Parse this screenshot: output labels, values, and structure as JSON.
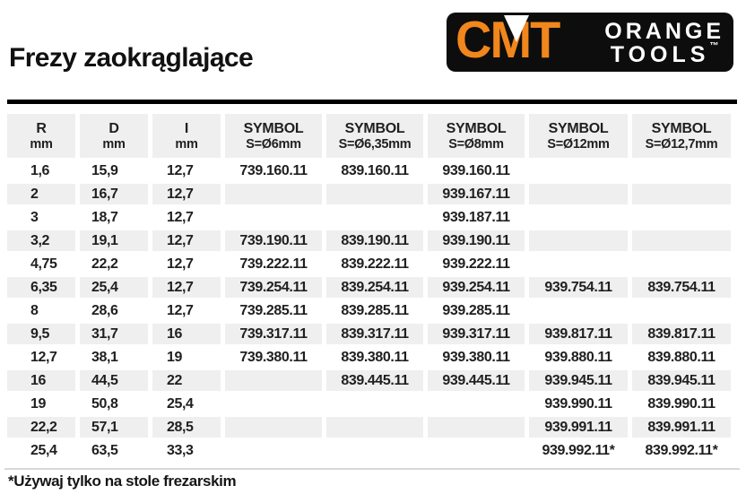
{
  "page": {
    "title": "Frezy zaokrąglające",
    "footnote": "*Używaj tylko na stole frezarskim"
  },
  "logo": {
    "cmt": "CMT",
    "line1": "ORANGE",
    "line2": "TOOLS",
    "tm": "™"
  },
  "colors": {
    "accent_orange": "#F0861C",
    "row_shade": "#EFEFEF",
    "rule_black": "#000000",
    "rule_gray": "#D8D8D8"
  },
  "table": {
    "columns": [
      {
        "line1": "R",
        "line2": "mm"
      },
      {
        "line1": "D",
        "line2": "mm"
      },
      {
        "line1": "I",
        "line2": "mm"
      },
      {
        "line1": "SYMBOL",
        "line2": "S=Ø6mm"
      },
      {
        "line1": "SYMBOL",
        "line2": "S=Ø6,35mm"
      },
      {
        "line1": "SYMBOL",
        "line2": "S=Ø8mm"
      },
      {
        "line1": "SYMBOL",
        "line2": "S=Ø12mm"
      },
      {
        "line1": "SYMBOL",
        "line2": "S=Ø12,7mm"
      }
    ],
    "rows": [
      [
        "1,6",
        "15,9",
        "12,7",
        "739.160.11",
        "839.160.11",
        "939.160.11",
        "",
        ""
      ],
      [
        "2",
        "16,7",
        "12,7",
        "",
        "",
        "939.167.11",
        "",
        ""
      ],
      [
        "3",
        "18,7",
        "12,7",
        "",
        "",
        "939.187.11",
        "",
        ""
      ],
      [
        "3,2",
        "19,1",
        "12,7",
        "739.190.11",
        "839.190.11",
        "939.190.11",
        "",
        ""
      ],
      [
        "4,75",
        "22,2",
        "12,7",
        "739.222.11",
        "839.222.11",
        "939.222.11",
        "",
        ""
      ],
      [
        "6,35",
        "25,4",
        "12,7",
        "739.254.11",
        "839.254.11",
        "939.254.11",
        "939.754.11",
        "839.754.11"
      ],
      [
        "8",
        "28,6",
        "12,7",
        "739.285.11",
        "839.285.11",
        "939.285.11",
        "",
        ""
      ],
      [
        "9,5",
        "31,7",
        "16",
        "739.317.11",
        "839.317.11",
        "939.317.11",
        "939.817.11",
        "839.817.11"
      ],
      [
        "12,7",
        "38,1",
        "19",
        "739.380.11",
        "839.380.11",
        "939.380.11",
        "939.880.11",
        "839.880.11"
      ],
      [
        "16",
        "44,5",
        "22",
        "",
        "839.445.11",
        "939.445.11",
        "939.945.11",
        "839.945.11"
      ],
      [
        "19",
        "50,8",
        "25,4",
        "",
        "",
        "",
        "939.990.11",
        "839.990.11"
      ],
      [
        "22,2",
        "57,1",
        "28,5",
        "",
        "",
        "",
        "939.991.11",
        "839.991.11"
      ],
      [
        "25,4",
        "63,5",
        "33,3",
        "",
        "",
        "",
        "939.992.11*",
        "839.992.11*"
      ]
    ]
  }
}
